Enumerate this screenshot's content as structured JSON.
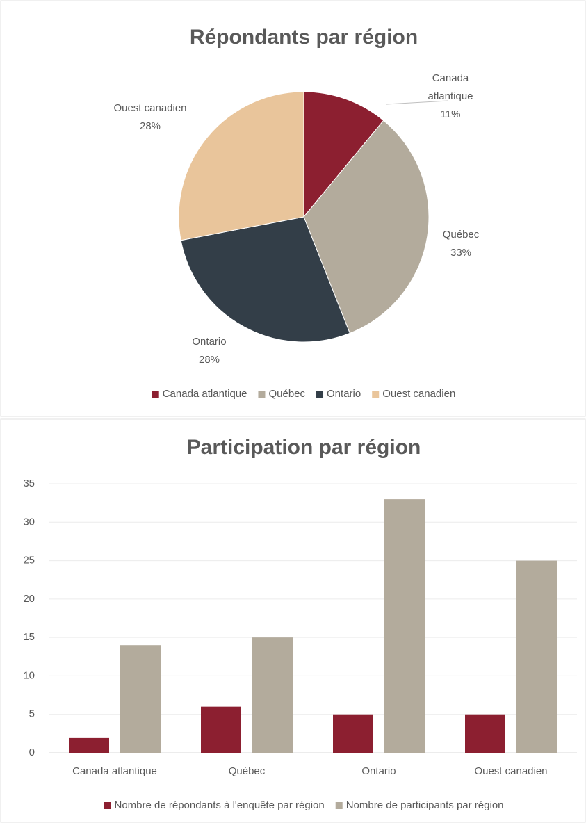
{
  "chart_data": [
    {
      "type": "pie",
      "title": "Répondants par région",
      "categories": [
        "Canada atlantique",
        "Québec",
        "Ontario",
        "Ouest canadien"
      ],
      "values": [
        11,
        33,
        28,
        28
      ],
      "value_labels": [
        "11%",
        "33%",
        "28%",
        "28%"
      ],
      "colors": [
        "#8c1f30",
        "#b3ab9c",
        "#333e48",
        "#e9c59b"
      ],
      "legend": "bottom"
    },
    {
      "type": "bar",
      "title": "Participation par région",
      "categories": [
        "Canada atlantique",
        "Québec",
        "Ontario",
        "Ouest canadien"
      ],
      "series": [
        {
          "name": "Nombre de répondants à l'enquête par région",
          "color": "#8c1f30",
          "values": [
            2,
            6,
            5,
            5
          ]
        },
        {
          "name": "Nombre de participants par région",
          "color": "#b3ab9c",
          "values": [
            14,
            15,
            33,
            25
          ]
        }
      ],
      "ylim": [
        0,
        35
      ],
      "yticks": [
        0,
        5,
        10,
        15,
        20,
        25,
        30,
        35
      ],
      "grid": true,
      "legend": "bottom"
    }
  ]
}
